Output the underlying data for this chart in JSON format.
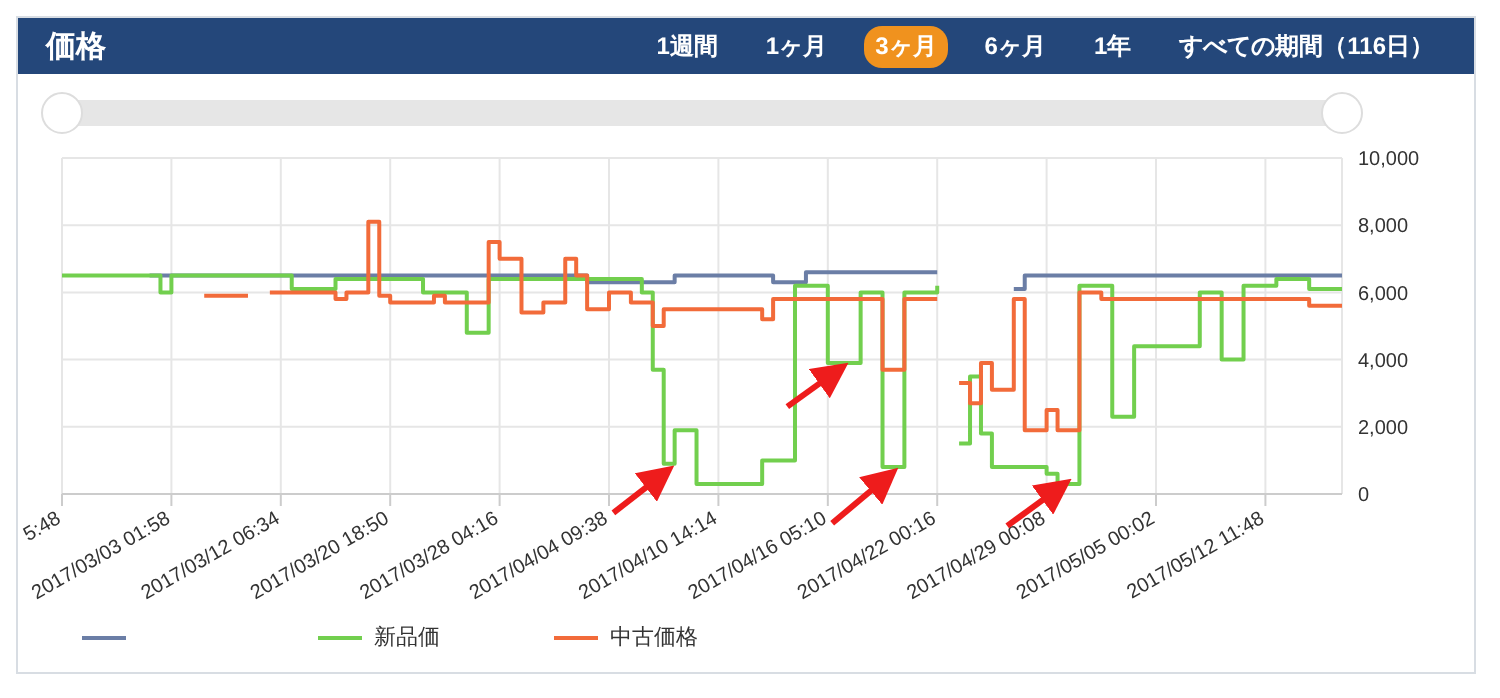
{
  "chart_data": {
    "type": "step",
    "title": "価格",
    "annotations": [
      "1週間",
      "1ヶ月",
      "3ヶ月",
      "6ヶ月",
      "1年",
      "すべての期間（116日）"
    ],
    "categories": [
      "5:48",
      null,
      null,
      null,
      null,
      null,
      null,
      null,
      null,
      null,
      "2017/03/03 01:58",
      null,
      null,
      null,
      null,
      null,
      null,
      null,
      null,
      null,
      "2017/03/12 06:34",
      null,
      null,
      null,
      null,
      null,
      null,
      null,
      null,
      null,
      "2017/03/20 18:50",
      null,
      null,
      null,
      null,
      null,
      null,
      null,
      null,
      null,
      "2017/03/28 04:16",
      null,
      null,
      null,
      null,
      null,
      null,
      null,
      null,
      null,
      "2017/04/04 09:38",
      null,
      null,
      null,
      null,
      null,
      null,
      null,
      null,
      null,
      "2017/04/10 14:14",
      null,
      null,
      null,
      null,
      null,
      null,
      null,
      null,
      null,
      "2017/04/16 05:10",
      null,
      null,
      null,
      null,
      null,
      null,
      null,
      null,
      null,
      "2017/04/22 00:16",
      null,
      null,
      null,
      null,
      null,
      null,
      null,
      null,
      null,
      "2017/04/29 00:08",
      null,
      null,
      null,
      null,
      null,
      null,
      null,
      null,
      null,
      "2017/05/05 00:02",
      null,
      null,
      null,
      null,
      null,
      null,
      null,
      null,
      null,
      "2017/05/12 11:48",
      null,
      null,
      null,
      null,
      null,
      null,
      null
    ],
    "ylim": [
      0,
      10000
    ],
    "yticks": [
      {
        "value": 0,
        "label": "0"
      },
      {
        "value": 2000,
        "label": "2,000"
      },
      {
        "value": 4000,
        "label": "4,000"
      },
      {
        "value": 6000,
        "label": "6,000"
      },
      {
        "value": 8000,
        "label": "8,000"
      },
      {
        "value": 10000,
        "label": "10,000"
      }
    ],
    "grid": true,
    "legend": "bottom",
    "line_style": "solid",
    "marker": "none",
    "series": [
      {
        "color": "#6b7ea6",
        "values": [
          null,
          null,
          null,
          null,
          null,
          null,
          null,
          null,
          6500,
          6500,
          6500,
          6500,
          6500,
          6500,
          6500,
          6500,
          6500,
          6500,
          6500,
          6500,
          6500,
          6500,
          6500,
          6500,
          6500,
          6500,
          6500,
          6500,
          6500,
          6500,
          6500,
          6500,
          6500,
          6500,
          6500,
          6500,
          6500,
          6500,
          6500,
          6500,
          6500,
          6500,
          6500,
          6500,
          6500,
          6500,
          6500,
          6500,
          6300,
          6300,
          6300,
          6300,
          6300,
          6300,
          6300,
          6300,
          6500,
          6500,
          6500,
          6500,
          6500,
          6500,
          6500,
          6500,
          6500,
          6300,
          6300,
          6300,
          6600,
          6600,
          6600,
          6600,
          6600,
          6600,
          6600,
          6600,
          6600,
          6600,
          6600,
          6600,
          6600,
          null,
          null,
          null,
          null,
          null,
          null,
          6100,
          6500,
          6500,
          6500,
          6500,
          6500,
          6500,
          6500,
          6500,
          6500,
          6500,
          6500,
          6500,
          6500,
          6500,
          6500,
          6500,
          6500,
          6500,
          6500,
          6500,
          6500,
          6500,
          6500,
          6500,
          6500,
          6500,
          6500,
          6500,
          6500,
          6500
        ]
      },
      {
        "name": "新品価",
        "color": "#72cf4e",
        "values": [
          6500,
          6500,
          6500,
          6500,
          6500,
          6500,
          6500,
          6500,
          6500,
          6000,
          6500,
          6500,
          6500,
          6500,
          6500,
          6500,
          6500,
          6500,
          6500,
          6500,
          6500,
          6100,
          6100,
          6100,
          6100,
          6400,
          6400,
          6400,
          6400,
          6400,
          6400,
          6400,
          6400,
          6000,
          6000,
          6000,
          6000,
          4800,
          4800,
          6400,
          6400,
          6400,
          6400,
          6400,
          6400,
          6400,
          6400,
          6400,
          6400,
          6400,
          6400,
          6400,
          6400,
          6000,
          3700,
          900,
          1900,
          1900,
          300,
          300,
          300,
          300,
          300,
          300,
          1000,
          1000,
          1000,
          6200,
          6200,
          6200,
          3900,
          3900,
          3900,
          6000,
          6000,
          800,
          800,
          6000,
          6000,
          6000,
          6200,
          null,
          1500,
          3500,
          1800,
          800,
          800,
          800,
          800,
          800,
          600,
          300,
          300,
          6200,
          6200,
          6200,
          2300,
          2300,
          4400,
          4400,
          4400,
          4400,
          4400,
          4400,
          6000,
          6000,
          4000,
          4000,
          6200,
          6200,
          6200,
          6400,
          6400,
          6400,
          6100,
          6100,
          6100,
          6100
        ]
      },
      {
        "name": "中古価格",
        "color": "#f26b3a",
        "values": [
          null,
          null,
          null,
          null,
          null,
          null,
          null,
          null,
          null,
          null,
          null,
          null,
          null,
          5900,
          5900,
          5900,
          5900,
          5900,
          null,
          6000,
          6000,
          6000,
          6000,
          6000,
          6000,
          5800,
          6000,
          6000,
          8100,
          5900,
          5700,
          5700,
          5700,
          5700,
          5900,
          5700,
          5700,
          5700,
          5700,
          7500,
          7000,
          7000,
          5400,
          5400,
          5700,
          5700,
          7000,
          6500,
          5500,
          5500,
          6000,
          6000,
          5700,
          5700,
          5000,
          5500,
          5500,
          5500,
          5500,
          5500,
          5500,
          5500,
          5500,
          5500,
          5200,
          5800,
          5800,
          5800,
          5800,
          5800,
          5800,
          5800,
          5800,
          5800,
          5800,
          3700,
          3700,
          5800,
          5800,
          5800,
          5800,
          null,
          3300,
          2700,
          3900,
          3100,
          3100,
          5800,
          1900,
          1900,
          2500,
          1900,
          1900,
          6000,
          6000,
          5800,
          5800,
          5800,
          5800,
          5800,
          5800,
          5800,
          5800,
          5800,
          5800,
          5800,
          5800,
          5800,
          5800,
          5800,
          5800,
          5800,
          5800,
          5800,
          5600,
          5600,
          5600,
          5600
        ]
      }
    ]
  }
}
